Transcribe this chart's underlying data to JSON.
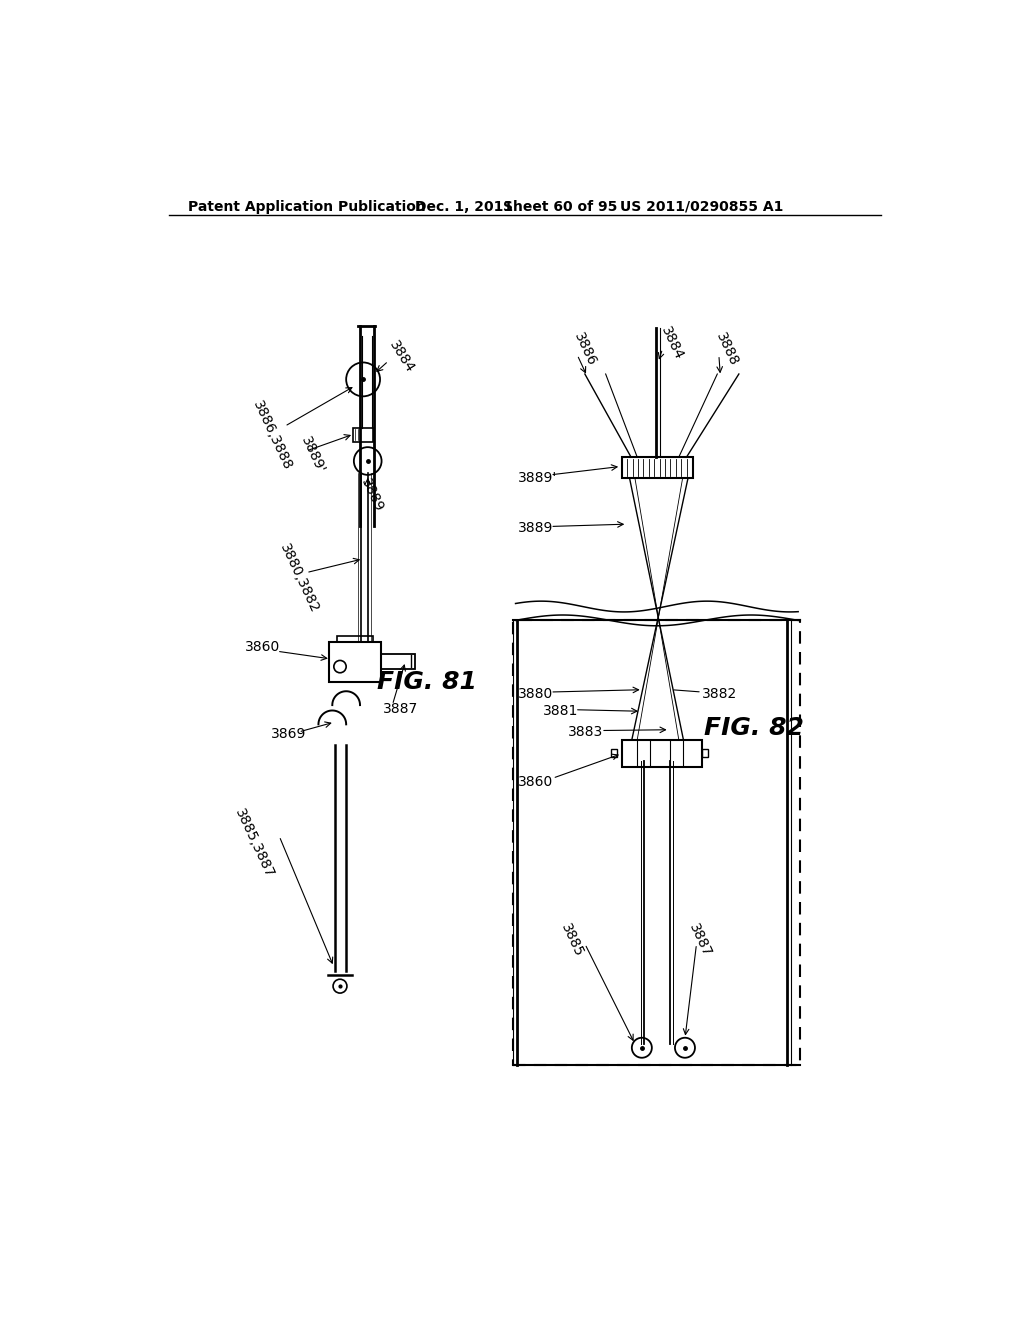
{
  "background_color": "#ffffff",
  "text_color": "#000000",
  "header_text": "Patent Application Publication",
  "header_date": "Dec. 1, 2011",
  "header_sheet": "Sheet 60 of 95",
  "header_patent": "US 2011/0290855 A1",
  "fig81_label": "FIG. 81",
  "fig82_label": "FIG. 82"
}
